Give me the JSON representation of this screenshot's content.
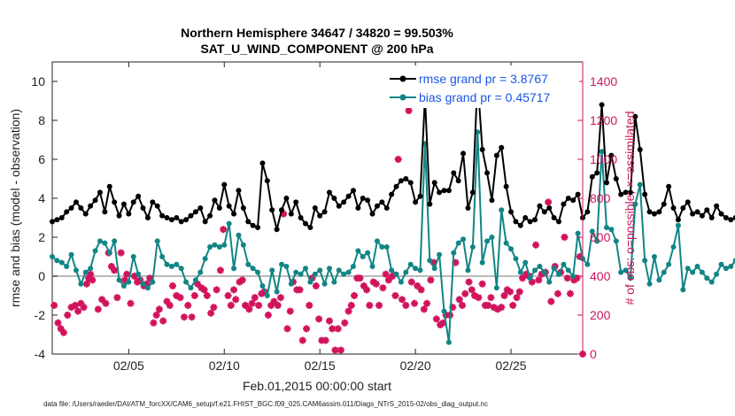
{
  "title_line1": "Northern Hemisphere 34647 / 34820 = 99.503%",
  "title_line2": "SAT_U_WIND_COMPONENT @ 200 hPa",
  "footer": "data file: /Users/raeder/DAI/ATM_forcXX/CAM6_setup/f.e21.FHIST_BGC.f09_025.CAM6assim.011/Diags_NTrS_2015-02/obs_diag_output.nc",
  "colors": {
    "rmse": "#000000",
    "bias": "#118585",
    "obs": "#d1135c",
    "zero_line": "#bbbbbb",
    "right_axis": "#c8175d",
    "legend_text": "#1a55e6"
  },
  "chart_data": {
    "type": "line",
    "xlabel": "Feb.01,2015 00:00:00 start",
    "ylabel_left": "rmse and bias (model - observation)",
    "ylabel_right": "# of obs: o=possible; ×=assimilated",
    "x_unit": "day of February 2015 (fractional, 6-hourly)",
    "xlim": [
      1,
      28.75
    ],
    "ylim_left": [
      -4,
      11
    ],
    "ylim_right": [
      0,
      1500
    ],
    "x_ticks": [
      5,
      10,
      15,
      20,
      25
    ],
    "x_tick_labels": [
      "02/05",
      "02/10",
      "02/15",
      "02/20",
      "02/25"
    ],
    "y_ticks_left": [
      -4,
      -2,
      0,
      2,
      4,
      6,
      8,
      10
    ],
    "y_ticks_right": [
      0,
      200,
      400,
      600,
      800,
      1000,
      1200,
      1400
    ],
    "legend": [
      {
        "label": "rmse grand pr = 3.8767",
        "series": "rmse"
      },
      {
        "label": "bias grand pr = 0.45717",
        "series": "bias"
      }
    ],
    "series": [
      {
        "name": "rmse",
        "axis": "left",
        "x_start": 1.0,
        "x_step": 0.25,
        "values": [
          2.8,
          2.9,
          3.0,
          3.3,
          3.5,
          3.8,
          3.5,
          3.2,
          3.6,
          3.9,
          4.3,
          3.3,
          4.6,
          3.8,
          3.1,
          3.7,
          3.2,
          3.8,
          4.1,
          3.5,
          3.0,
          3.8,
          3.6,
          3.1,
          3.0,
          2.9,
          3.0,
          2.8,
          2.9,
          3.1,
          3.3,
          3.5,
          2.8,
          3.1,
          3.9,
          3.5,
          4.7,
          3.6,
          3.2,
          4.4,
          3.5,
          2.8,
          2.6,
          2.5,
          5.8,
          4.9,
          3.4,
          2.4,
          3.4,
          4.0,
          3.2,
          3.8,
          3.0,
          2.7,
          2.5,
          3.5,
          3.1,
          3.3,
          4.3,
          4.0,
          3.6,
          3.8,
          4.1,
          4.4,
          3.5,
          4.0,
          3.9,
          3.2,
          3.6,
          3.8,
          3.5,
          4.2,
          4.6,
          4.9,
          5.0,
          4.8,
          3.8,
          4.1,
          9.2,
          3.7,
          4.8,
          4.3,
          4.4,
          4.4,
          5.3,
          4.9,
          6.3,
          3.5,
          4.3,
          10.1,
          6.5,
          5.3,
          3.9,
          6.2,
          6.6,
          4.6,
          3.3,
          2.8,
          2.6,
          3.0,
          2.8,
          2.9,
          3.6,
          3.3,
          3.5,
          3.0,
          2.8,
          3.7,
          4.0,
          3.9,
          4.2,
          3.0,
          3.3,
          5.1,
          5.3,
          8.8,
          4.8,
          6.2,
          5.0,
          4.2,
          4.3,
          4.3,
          8.2,
          6.5,
          4.2,
          3.3,
          3.2,
          3.3,
          3.7,
          4.6,
          3.5,
          2.9,
          3.5,
          3.8,
          3.2,
          3.3,
          3.1,
          3.4,
          3.0,
          3.6,
          3.2,
          3.0,
          2.9,
          3.0,
          3.2,
          2.9,
          3.1,
          2.9,
          3.3,
          3.2,
          3.3,
          3.4,
          3.6,
          3.6,
          3.4,
          3.1,
          3.3,
          4.9,
          3.8,
          3.2,
          3.5,
          3.0,
          3.2,
          3.7,
          3.5,
          3.1,
          3.4,
          3.6,
          3.5,
          3.2,
          2.9,
          3.0,
          3.3,
          3.2,
          3.4,
          3.2,
          2.9,
          3.1,
          3.2,
          3.3,
          1.9,
          2.1,
          2.4,
          2.7
        ]
      },
      {
        "name": "bias",
        "axis": "left",
        "x_start": 1.0,
        "x_step": 0.25,
        "values": [
          1.0,
          0.8,
          0.7,
          0.5,
          1.1,
          0.3,
          -0.4,
          0.2,
          0.4,
          1.3,
          1.8,
          1.7,
          1.2,
          1.8,
          -0.2,
          -0.5,
          -0.3,
          1.0,
          0.1,
          -0.4,
          -0.6,
          -0.3,
          1.8,
          1.0,
          0.6,
          0.5,
          0.6,
          0.4,
          -0.3,
          -0.6,
          -0.2,
          0.2,
          0.9,
          1.5,
          1.6,
          1.5,
          1.6,
          2.7,
          0.4,
          2.1,
          1.6,
          0.6,
          0.4,
          0.2,
          -0.5,
          -1.0,
          0.3,
          -0.8,
          0.6,
          0.5,
          -0.4,
          0.2,
          0.1,
          0.4,
          -0.3,
          0.1,
          0.3,
          -0.4,
          0.4,
          -0.3,
          0.3,
          0.1,
          0.2,
          0.5,
          1.3,
          1.0,
          1.2,
          0.5,
          1.8,
          1.5,
          1.5,
          0.3,
          0.1,
          -0.3,
          0.2,
          0.6,
          0.4,
          0.3,
          6.8,
          0.8,
          0.4,
          1.1,
          -1.8,
          -3.4,
          1.2,
          1.7,
          1.9,
          0.3,
          1.5,
          7.4,
          0.7,
          1.8,
          2.0,
          -0.6,
          3.4,
          1.7,
          1.4,
          0.9,
          0.2,
          0.7,
          -0.1,
          0.3,
          0.5,
          0.2,
          -0.3,
          0.4,
          0.1,
          0.6,
          0.3,
          0.0,
          2.2,
          0.9,
          0.6,
          2.3,
          1.8,
          6.4,
          2.5,
          2.4,
          1.8,
          0.2,
          0.3,
          -0.1,
          3.7,
          4.7,
          0.8,
          -0.4,
          1.0,
          -0.2,
          0.2,
          0.6,
          1.5,
          2.6,
          -0.7,
          0.4,
          0.2,
          0.5,
          0.2,
          -0.1,
          -0.3,
          0.1,
          0.6,
          0.4,
          0.5,
          0.8,
          0.2,
          0.5,
          0.3,
          0.2,
          0.6,
          0.5,
          0.2,
          -0.4,
          0.2,
          0.4,
          -0.3,
          -0.8,
          0.3,
          0.5,
          0.9,
          0.8,
          0.8,
          -0.3,
          0.4,
          0.4,
          -0.1,
          -0.5,
          -0.6,
          0.2,
          0.6,
          1.3,
          0.5,
          0.2,
          -0.4,
          -0.5,
          -0.3,
          -0.3,
          0.2,
          -0.6,
          0.3,
          -0.5,
          -0.5,
          -0.3
        ]
      },
      {
        "name": "obs_assimilated",
        "axis": "right",
        "marker": "asterisk",
        "points": [
          [
            1.1,
            250
          ],
          [
            1.3,
            160
          ],
          [
            1.45,
            130
          ],
          [
            1.6,
            110
          ],
          [
            1.8,
            200
          ],
          [
            2.0,
            240
          ],
          [
            2.2,
            250
          ],
          [
            2.35,
            220
          ],
          [
            2.5,
            260
          ],
          [
            2.65,
            240
          ],
          [
            2.8,
            360
          ],
          [
            2.9,
            390
          ],
          [
            3.0,
            410
          ],
          [
            3.1,
            380
          ],
          [
            3.4,
            230
          ],
          [
            3.6,
            280
          ],
          [
            3.8,
            260
          ],
          [
            3.95,
            520
          ],
          [
            4.1,
            450
          ],
          [
            4.25,
            430
          ],
          [
            4.4,
            290
          ],
          [
            4.6,
            520
          ],
          [
            4.8,
            380
          ],
          [
            4.9,
            410
          ],
          [
            5.1,
            260
          ],
          [
            5.3,
            400
          ],
          [
            5.45,
            370
          ],
          [
            5.6,
            380
          ],
          [
            5.8,
            350
          ],
          [
            5.95,
            360
          ],
          [
            6.1,
            390
          ],
          [
            6.3,
            160
          ],
          [
            6.45,
            200
          ],
          [
            6.6,
            230
          ],
          [
            6.8,
            170
          ],
          [
            7.0,
            270
          ],
          [
            7.15,
            250
          ],
          [
            7.3,
            350
          ],
          [
            7.5,
            300
          ],
          [
            7.7,
            290
          ],
          [
            7.9,
            190
          ],
          [
            8.1,
            250
          ],
          [
            8.3,
            190
          ],
          [
            8.45,
            300
          ],
          [
            8.6,
            360
          ],
          [
            8.8,
            340
          ],
          [
            8.95,
            330
          ],
          [
            9.1,
            300
          ],
          [
            9.3,
            210
          ],
          [
            9.45,
            240
          ],
          [
            9.6,
            330
          ],
          [
            9.8,
            430
          ],
          [
            9.95,
            640
          ],
          [
            10.2,
            300
          ],
          [
            10.35,
            250
          ],
          [
            10.5,
            330
          ],
          [
            10.6,
            280
          ],
          [
            10.8,
            370
          ],
          [
            10.95,
            380
          ],
          [
            11.1,
            250
          ],
          [
            11.3,
            230
          ],
          [
            11.45,
            260
          ],
          [
            11.6,
            290
          ],
          [
            11.8,
            250
          ],
          [
            11.95,
            310
          ],
          [
            12.1,
            320
          ],
          [
            12.3,
            200
          ],
          [
            12.45,
            250
          ],
          [
            12.6,
            270
          ],
          [
            12.8,
            250
          ],
          [
            12.95,
            290
          ],
          [
            13.1,
            720
          ],
          [
            13.3,
            130
          ],
          [
            13.45,
            220
          ],
          [
            13.6,
            370
          ],
          [
            13.8,
            330
          ],
          [
            13.95,
            330
          ],
          [
            14.1,
            70
          ],
          [
            14.3,
            130
          ],
          [
            14.45,
            250
          ],
          [
            14.6,
            390
          ],
          [
            14.8,
            350
          ],
          [
            14.95,
            180
          ],
          [
            15.1,
            70
          ],
          [
            15.3,
            70
          ],
          [
            15.5,
            170
          ],
          [
            15.65,
            130
          ],
          [
            15.8,
            20
          ],
          [
            15.95,
            130
          ],
          [
            16.1,
            20
          ],
          [
            16.3,
            160
          ],
          [
            16.5,
            220
          ],
          [
            16.65,
            250
          ],
          [
            16.8,
            300
          ],
          [
            16.95,
            390
          ],
          [
            17.1,
            390
          ],
          [
            17.3,
            350
          ],
          [
            17.45,
            330
          ],
          [
            17.6,
            250
          ],
          [
            17.8,
            370
          ],
          [
            17.95,
            360
          ],
          [
            18.1,
            250
          ],
          [
            18.3,
            340
          ],
          [
            18.45,
            410
          ],
          [
            18.6,
            380
          ],
          [
            18.8,
            400
          ],
          [
            18.95,
            300
          ],
          [
            19.1,
            1000
          ],
          [
            19.3,
            280
          ],
          [
            19.5,
            250
          ],
          [
            19.65,
            1250
          ],
          [
            19.8,
            370
          ],
          [
            19.95,
            260
          ],
          [
            20.1,
            350
          ],
          [
            20.3,
            330
          ],
          [
            20.45,
            230
          ],
          [
            20.6,
            260
          ],
          [
            20.8,
            380
          ],
          [
            20.95,
            470
          ],
          [
            21.1,
            180
          ],
          [
            21.3,
            150
          ],
          [
            21.45,
            160
          ],
          [
            21.6,
            200
          ],
          [
            21.8,
            200
          ],
          [
            21.95,
            240
          ],
          [
            22.1,
            470
          ],
          [
            22.3,
            280
          ],
          [
            22.45,
            250
          ],
          [
            22.6,
            310
          ],
          [
            22.8,
            370
          ],
          [
            22.95,
            330
          ],
          [
            23.1,
            300
          ],
          [
            23.3,
            290
          ],
          [
            23.5,
            360
          ],
          [
            23.65,
            250
          ],
          [
            23.8,
            250
          ],
          [
            23.95,
            290
          ],
          [
            24.1,
            240
          ],
          [
            24.3,
            230
          ],
          [
            24.5,
            240
          ],
          [
            24.65,
            300
          ],
          [
            24.8,
            330
          ],
          [
            24.95,
            320
          ],
          [
            25.1,
            250
          ],
          [
            25.3,
            290
          ],
          [
            25.45,
            320
          ],
          [
            25.6,
            390
          ],
          [
            25.8,
            410
          ],
          [
            25.95,
            400
          ],
          [
            26.1,
            370
          ],
          [
            26.3,
            560
          ],
          [
            26.45,
            380
          ],
          [
            26.6,
            410
          ],
          [
            26.8,
            420
          ],
          [
            26.95,
            780
          ],
          [
            27.1,
            270
          ],
          [
            27.3,
            450
          ],
          [
            27.45,
            310
          ],
          [
            27.6,
            420
          ],
          [
            27.8,
            600
          ],
          [
            27.95,
            390
          ],
          [
            28.1,
            310
          ],
          [
            28.3,
            380
          ],
          [
            28.45,
            390
          ],
          [
            28.6,
            500
          ],
          [
            28.75,
            0
          ]
        ]
      }
    ]
  }
}
